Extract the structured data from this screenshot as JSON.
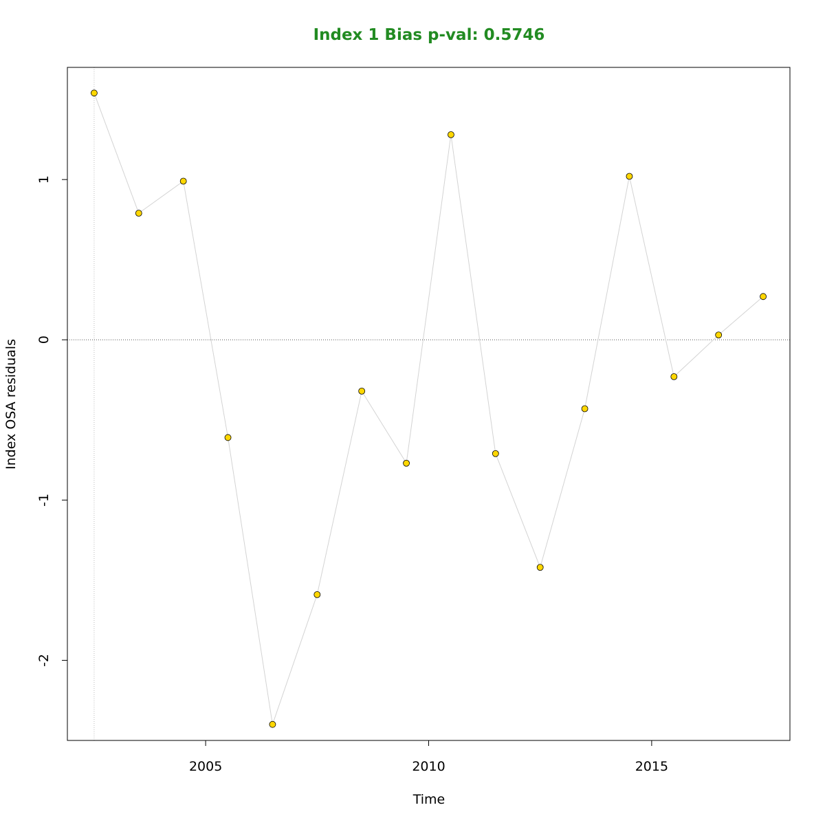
{
  "chart_data": {
    "type": "scatter",
    "title": "Index 1 Bias p-val: 0.5746",
    "title_color": "#228B22",
    "xlabel": "Time",
    "ylabel": "Index OSA residuals",
    "xlim": [
      2001.9,
      2018.1
    ],
    "ylim": [
      -2.5,
      1.7
    ],
    "xticks": [
      2005,
      2010,
      2015
    ],
    "xtick_labels": [
      "2005",
      "2010",
      "2015"
    ],
    "yticks": [
      -2,
      -1,
      0,
      1
    ],
    "ytick_labels": [
      "-2",
      "-1",
      "0",
      "1"
    ],
    "reference_line_y": 0,
    "reference_line_x": 2002.5,
    "point_color": "#FFD700",
    "line_color": "#d3d3d3",
    "series": [
      {
        "x": [
          2002.5,
          2003.5,
          2004.5,
          2005.5,
          2006.5,
          2007.5,
          2008.5,
          2009.5,
          2010.5,
          2011.5,
          2012.5,
          2013.5,
          2014.5,
          2015.5,
          2016.5,
          2017.5
        ],
        "values": [
          1.54,
          0.79,
          0.99,
          -0.61,
          -2.4,
          -1.59,
          -0.32,
          -0.77,
          1.28,
          -0.71,
          -1.42,
          -0.43,
          1.02,
          -0.23,
          0.03,
          0.27
        ]
      }
    ]
  }
}
